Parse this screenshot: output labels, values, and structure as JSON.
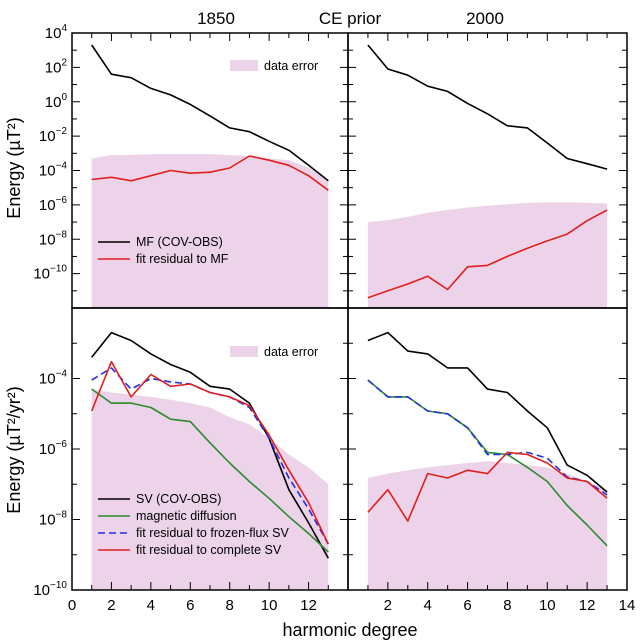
{
  "figure": {
    "title_left": "1850",
    "title_center": "CE prior",
    "title_right": "2000",
    "xlabel": "harmonic degree",
    "ylabel_top": "Energy (µT²)",
    "ylabel_bottom": "Energy (µT²/yr²)"
  },
  "chart_data": [
    {
      "type": "line",
      "panel": "top-left",
      "title": "1850",
      "ylabel": "Energy (µT²)",
      "yscale": "log",
      "xlim": [
        0,
        14
      ],
      "ylim": [
        1e-12,
        10000
      ],
      "yticks": [
        "10^4",
        "10^2",
        "10^0",
        "10^-2",
        "10^-4",
        "10^-6",
        "10^-8",
        "10^-10"
      ],
      "legend_position": "bottom-left",
      "band": {
        "name": "data error",
        "x": [
          1,
          2,
          3,
          4,
          5,
          6,
          7,
          8,
          9,
          10,
          11,
          12,
          13
        ],
        "upper": [
          0.0005,
          0.0008,
          0.0008,
          0.0009,
          0.0009,
          0.0009,
          0.0009,
          0.0008,
          0.0007,
          0.0005,
          0.0004,
          0.00015,
          3e-05
        ],
        "lower": 1e-12,
        "color": "#ecd3ea"
      },
      "series": [
        {
          "name": "MF (COV-OBS)",
          "color": "#000000",
          "dash": false,
          "x": [
            1,
            2,
            3,
            4,
            5,
            6,
            7,
            8,
            9,
            10,
            11,
            12,
            13
          ],
          "values": [
            2000,
            40,
            25,
            6,
            2.5,
            0.7,
            0.15,
            0.03,
            0.018,
            0.005,
            0.0015,
            0.0002,
            2.5e-05
          ]
        },
        {
          "name": "fit residual to MF",
          "color": "#e0201c",
          "dash": false,
          "x": [
            1,
            2,
            3,
            4,
            5,
            6,
            7,
            8,
            9,
            10,
            11,
            12,
            13
          ],
          "values": [
            3e-05,
            4e-05,
            2.5e-05,
            5e-05,
            0.0001,
            7e-05,
            8e-05,
            0.00014,
            0.0007,
            0.0004,
            0.0002,
            5e-05,
            7e-06
          ]
        }
      ]
    },
    {
      "type": "line",
      "panel": "top-right",
      "title": "2000",
      "yscale": "log",
      "xlim": [
        0,
        14
      ],
      "ylim": [
        1e-12,
        10000
      ],
      "band": {
        "name": "data error",
        "x": [
          1,
          2,
          3,
          4,
          5,
          6,
          7,
          8,
          9,
          10,
          11,
          12,
          13
        ],
        "upper": [
          1e-07,
          1.3e-07,
          2e-07,
          3.5e-07,
          5e-07,
          7e-07,
          9e-07,
          1.1e-06,
          1.3e-06,
          1.4e-06,
          1.4e-06,
          1.3e-06,
          1.2e-06
        ],
        "lower": 1e-12,
        "color": "#ecd3ea"
      },
      "series": [
        {
          "name": "MF (COV-OBS)",
          "color": "#000000",
          "dash": false,
          "x": [
            1,
            2,
            3,
            4,
            5,
            6,
            7,
            8,
            9,
            10,
            11,
            12,
            13
          ],
          "values": [
            2000,
            80,
            35,
            8,
            4,
            0.8,
            0.2,
            0.04,
            0.03,
            0.004,
            0.0005,
            0.00025,
            0.00012
          ]
        },
        {
          "name": "fit residual to MF",
          "color": "#e0201c",
          "dash": false,
          "x": [
            1,
            2,
            3,
            4,
            5,
            6,
            7,
            8,
            9,
            10,
            11,
            12,
            13
          ],
          "values": [
            4e-12,
            1e-11,
            2.5e-11,
            7e-11,
            1.2e-11,
            2.5e-10,
            3e-10,
            1e-09,
            3e-09,
            8e-09,
            2e-08,
            1.2e-07,
            5e-07
          ]
        }
      ]
    },
    {
      "type": "line",
      "panel": "bottom-left",
      "ylabel": "Energy (µT²/yr²)",
      "yscale": "log",
      "xlim": [
        0,
        14
      ],
      "ylim": [
        1e-10,
        0.01
      ],
      "xticks": [
        0,
        2,
        4,
        6,
        8,
        10,
        12
      ],
      "yticks": [
        "10^-4",
        "10^-6",
        "10^-8",
        "10^-10"
      ],
      "legend_position": "bottom-left",
      "band": {
        "name": "data error",
        "x": [
          1,
          2,
          3,
          4,
          5,
          6,
          7,
          8,
          9,
          10,
          11,
          12,
          13
        ],
        "upper": [
          5e-05,
          4e-05,
          3.5e-05,
          3e-05,
          2.5e-05,
          2e-05,
          1.5e-05,
          8e-06,
          5e-06,
          2e-06,
          7e-07,
          3e-07,
          1e-07
        ],
        "lower": 1e-10,
        "color": "#ecd3ea"
      },
      "series": [
        {
          "name": "SV (COV-OBS)",
          "color": "#000000",
          "dash": false,
          "x": [
            1,
            2,
            3,
            4,
            5,
            6,
            7,
            8,
            9,
            10,
            11,
            12,
            13
          ],
          "values": [
            0.0004,
            0.002,
            0.0012,
            0.0005,
            0.00025,
            0.00015,
            6e-05,
            5e-05,
            2e-05,
            2e-06,
            7e-08,
            8e-09,
            8e-10
          ]
        },
        {
          "name": "magnetic diffusion",
          "color": "#2a8c2a",
          "dash": false,
          "x": [
            1,
            2,
            3,
            4,
            5,
            6,
            7,
            8,
            9,
            10,
            11,
            12,
            13
          ],
          "values": [
            5e-05,
            2e-05,
            2e-05,
            1.5e-05,
            7e-06,
            6e-06,
            1.5e-06,
            4e-07,
            1.2e-07,
            4e-08,
            1.2e-08,
            4e-09,
            1.2e-09
          ]
        },
        {
          "name": "fit residual to frozen-flux SV",
          "color": "#1f2ee8",
          "dash": true,
          "x": [
            1,
            2,
            3,
            4,
            5,
            6,
            7,
            8,
            9,
            10,
            11,
            12,
            13
          ],
          "values": [
            9e-05,
            0.0002,
            5e-05,
            0.0001,
            8e-05,
            7e-05,
            4e-05,
            3e-05,
            1.5e-05,
            2e-06,
            1.5e-07,
            2e-08,
            2e-09
          ]
        },
        {
          "name": "fit residual to complete SV",
          "color": "#e0201c",
          "dash": false,
          "x": [
            1,
            2,
            3,
            4,
            5,
            6,
            7,
            8,
            9,
            10,
            11,
            12,
            13
          ],
          "values": [
            1.2e-05,
            0.0003,
            3e-05,
            0.00013,
            6e-05,
            7e-05,
            4e-05,
            3e-05,
            1.7e-05,
            2.5e-06,
            2.5e-07,
            3e-08,
            2e-09
          ]
        }
      ]
    },
    {
      "type": "line",
      "panel": "bottom-right",
      "yscale": "log",
      "xlim": [
        0,
        14
      ],
      "ylim": [
        1e-10,
        0.01
      ],
      "xticks": [
        2,
        4,
        6,
        8,
        10,
        12,
        14
      ],
      "band": {
        "name": "data error",
        "x": [
          1,
          2,
          3,
          4,
          5,
          6,
          7,
          8,
          9,
          10,
          11,
          12,
          13
        ],
        "upper": [
          1.5e-07,
          2e-07,
          2.5e-07,
          3e-07,
          3.5e-07,
          4e-07,
          4.5e-07,
          4e-07,
          3.5e-07,
          3e-07,
          2e-07,
          1.2e-07,
          7e-08
        ],
        "lower": 1e-10,
        "color": "#ecd3ea"
      },
      "series": [
        {
          "name": "SV (COV-OBS)",
          "color": "#000000",
          "dash": false,
          "x": [
            1,
            2,
            3,
            4,
            5,
            6,
            7,
            8,
            9,
            10,
            11,
            12,
            13
          ],
          "values": [
            0.0012,
            0.002,
            0.0006,
            0.0005,
            0.0002,
            0.0002,
            5e-05,
            4e-05,
            1.2e-05,
            4e-06,
            3.5e-07,
            1.8e-07,
            6e-08
          ]
        },
        {
          "name": "magnetic diffusion",
          "color": "#2a8c2a",
          "dash": false,
          "x": [
            1,
            2,
            3,
            4,
            5,
            6,
            7,
            8,
            9,
            10,
            11,
            12,
            13
          ],
          "values": [
            9e-05,
            3e-05,
            3e-05,
            1.2e-05,
            1e-05,
            4e-06,
            8e-07,
            7e-07,
            3e-07,
            1.2e-07,
            2.5e-08,
            7e-09,
            1.8e-09
          ]
        },
        {
          "name": "fit residual to frozen-flux SV",
          "color": "#1f2ee8",
          "dash": true,
          "x": [
            1,
            2,
            3,
            4,
            5,
            6,
            7,
            8,
            9,
            10,
            11,
            12,
            13
          ],
          "values": [
            9e-05,
            3e-05,
            3e-05,
            1.2e-05,
            1e-05,
            4e-06,
            7e-07,
            7e-07,
            8e-07,
            5.5e-07,
            1.6e-07,
            1.2e-07,
            5e-08
          ]
        },
        {
          "name": "fit residual to complete SV",
          "color": "#e0201c",
          "dash": false,
          "x": [
            1,
            2,
            3,
            4,
            5,
            6,
            7,
            8,
            9,
            10,
            11,
            12,
            13
          ],
          "values": [
            1.6e-08,
            7e-08,
            9e-09,
            2e-07,
            1.5e-07,
            2.5e-07,
            2e-07,
            8e-07,
            7e-07,
            4e-07,
            1.5e-07,
            1.2e-07,
            4e-08
          ]
        }
      ]
    }
  ]
}
